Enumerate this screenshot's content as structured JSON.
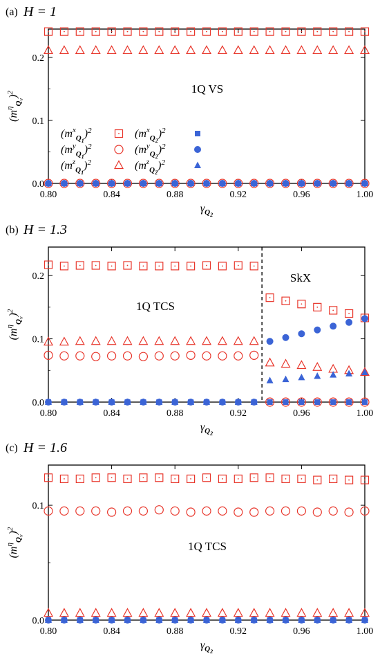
{
  "colors": {
    "red": "#e8362b",
    "blue": "#3b64d6"
  },
  "chart_data": [
    {
      "type": "scatter",
      "panel_label": "(a)",
      "field_label": "H = 1",
      "xlabel": "γQ₂",
      "ylabel": "(mᵑQᵥ)²",
      "xlim": [
        0.8,
        1.0
      ],
      "ylim": [
        0,
        0.245
      ],
      "xticks": [
        "0.80",
        "0.84",
        "0.88",
        "0.92",
        "0.96",
        "1.00"
      ],
      "yticks": [
        "0.0",
        "0.1",
        "0.2"
      ],
      "annotations": [
        "1Q VS"
      ],
      "legend": [
        "(mˣQ₁)²",
        "(mʸQ₁)²",
        "(mᶻQ₁)²",
        "(mˣQ₂)²",
        "(mʸQ₂)²",
        "(mᶻQ₂)²"
      ],
      "x": [
        0.8,
        0.81,
        0.82,
        0.83,
        0.84,
        0.85,
        0.86,
        0.87,
        0.88,
        0.89,
        0.9,
        0.91,
        0.92,
        0.93,
        0.94,
        0.95,
        0.96,
        0.97,
        0.98,
        0.99,
        1.0
      ],
      "series": [
        {
          "name": "(mˣQ₁)²",
          "marker": "square-open",
          "color": "red",
          "values": [
            0.241,
            0.241,
            0.241,
            0.241,
            0.241,
            0.241,
            0.241,
            0.241,
            0.241,
            0.241,
            0.241,
            0.241,
            0.241,
            0.241,
            0.241,
            0.241,
            0.241,
            0.241,
            0.241,
            0.241,
            0.241
          ]
        },
        {
          "name": "(mʸQ₁)²",
          "marker": "circle-open",
          "color": "red",
          "values": [
            0.0,
            0.0,
            0.0,
            0.0,
            0.0,
            0.0,
            0.0,
            0.0,
            0.0,
            0.0,
            0.0,
            0.0,
            0.0,
            0.0,
            0.0,
            0.0,
            0.0,
            0.0,
            0.0,
            0.0,
            0.0
          ]
        },
        {
          "name": "(mᶻQ₁)²",
          "marker": "triangle-open",
          "color": "red",
          "values": [
            0.211,
            0.211,
            0.211,
            0.211,
            0.211,
            0.211,
            0.211,
            0.211,
            0.211,
            0.211,
            0.211,
            0.211,
            0.211,
            0.211,
            0.211,
            0.211,
            0.211,
            0.211,
            0.211,
            0.211,
            0.211
          ]
        },
        {
          "name": "(mˣQ₂)²",
          "marker": "square-filled",
          "color": "blue",
          "values": [
            0.0,
            0.0,
            0.0,
            0.0,
            0.0,
            0.0,
            0.0,
            0.0,
            0.0,
            0.0,
            0.0,
            0.0,
            0.0,
            0.0,
            0.0,
            0.0,
            0.0,
            0.0,
            0.0,
            0.0,
            0.0
          ]
        },
        {
          "name": "(mʸQ₂)²",
          "marker": "circle-filled",
          "color": "blue",
          "values": [
            0.0,
            0.0,
            0.0,
            0.0,
            0.0,
            0.0,
            0.0,
            0.0,
            0.0,
            0.0,
            0.0,
            0.0,
            0.0,
            0.0,
            0.0,
            0.0,
            0.0,
            0.0,
            0.0,
            0.0,
            0.0
          ]
        },
        {
          "name": "(mᶻQ₂)²",
          "marker": "triangle-filled",
          "color": "blue",
          "values": [
            0.0,
            0.0,
            0.0,
            0.0,
            0.0,
            0.0,
            0.0,
            0.0,
            0.0,
            0.0,
            0.0,
            0.0,
            0.0,
            0.0,
            0.0,
            0.0,
            0.0,
            0.0,
            0.0,
            0.0,
            0.0
          ]
        }
      ]
    },
    {
      "type": "scatter",
      "panel_label": "(b)",
      "field_label": "H = 1.3",
      "xlabel": "γQ₂",
      "ylabel": "(mᵑQᵥ)²",
      "xlim": [
        0.8,
        1.0
      ],
      "ylim": [
        0,
        0.245
      ],
      "xticks": [
        "0.80",
        "0.84",
        "0.88",
        "0.92",
        "0.96",
        "1.00"
      ],
      "yticks": [
        "0.0",
        "0.1",
        "0.2"
      ],
      "annotations": [
        "1Q TCS",
        "SkX"
      ],
      "phase_boundary_x": 0.935,
      "x": [
        0.8,
        0.81,
        0.82,
        0.83,
        0.84,
        0.85,
        0.86,
        0.87,
        0.88,
        0.89,
        0.9,
        0.91,
        0.92,
        0.93,
        0.94,
        0.95,
        0.96,
        0.97,
        0.98,
        0.99,
        1.0
      ],
      "series": [
        {
          "name": "(mˣQ₁)²",
          "marker": "square-open",
          "color": "red",
          "values": [
            0.217,
            0.215,
            0.216,
            0.216,
            0.215,
            0.216,
            0.215,
            0.215,
            0.215,
            0.215,
            0.216,
            0.215,
            0.216,
            0.215,
            0.165,
            0.16,
            0.155,
            0.15,
            0.145,
            0.14,
            0.133
          ]
        },
        {
          "name": "(mʸQ₁)²",
          "marker": "circle-open",
          "color": "red",
          "values": [
            0.074,
            0.073,
            0.073,
            0.072,
            0.073,
            0.073,
            0.072,
            0.073,
            0.073,
            0.074,
            0.073,
            0.073,
            0.073,
            0.074,
            0.0,
            0.0,
            0.0,
            0.0,
            0.0,
            0.0,
            0.0
          ]
        },
        {
          "name": "(mᶻQ₁)²",
          "marker": "triangle-open",
          "color": "red",
          "values": [
            0.095,
            0.095,
            0.096,
            0.096,
            0.096,
            0.096,
            0.096,
            0.096,
            0.096,
            0.096,
            0.096,
            0.096,
            0.096,
            0.096,
            0.062,
            0.06,
            0.058,
            0.055,
            0.052,
            0.05,
            0.047
          ]
        },
        {
          "name": "(mˣQ₂)²",
          "marker": "square-filled",
          "color": "blue",
          "values": [
            0.0,
            0.0,
            0.0,
            0.0,
            0.0,
            0.0,
            0.0,
            0.0,
            0.0,
            0.0,
            0.0,
            0.0,
            0.0,
            0.0,
            0.0,
            0.0,
            0.0,
            0.0,
            0.0,
            0.0,
            0.0
          ]
        },
        {
          "name": "(mʸQ₂)²",
          "marker": "circle-filled",
          "color": "blue",
          "values": [
            0.0,
            0.0,
            0.0,
            0.0,
            0.0,
            0.0,
            0.0,
            0.0,
            0.0,
            0.0,
            0.0,
            0.0,
            0.0,
            0.0,
            0.096,
            0.102,
            0.108,
            0.114,
            0.12,
            0.126,
            0.132
          ]
        },
        {
          "name": "(mᶻQ₂)²",
          "marker": "triangle-filled",
          "color": "blue",
          "values": [
            0.0,
            0.0,
            0.0,
            0.0,
            0.0,
            0.0,
            0.0,
            0.0,
            0.0,
            0.0,
            0.0,
            0.0,
            0.0,
            0.0,
            0.034,
            0.036,
            0.039,
            0.041,
            0.043,
            0.045,
            0.047
          ]
        }
      ]
    },
    {
      "type": "scatter",
      "panel_label": "(c)",
      "field_label": "H = 1.6",
      "xlabel": "γQ₂",
      "ylabel": "(mᵑQᵥ)²",
      "xlim": [
        0.8,
        1.0
      ],
      "ylim": [
        0,
        0.135
      ],
      "xticks": [
        "0.80",
        "0.84",
        "0.88",
        "0.92",
        "0.96",
        "1.00"
      ],
      "yticks": [
        "0.0",
        "0.1"
      ],
      "annotations": [
        "1Q TCS"
      ],
      "x": [
        0.8,
        0.81,
        0.82,
        0.83,
        0.84,
        0.85,
        0.86,
        0.87,
        0.88,
        0.89,
        0.9,
        0.91,
        0.92,
        0.93,
        0.94,
        0.95,
        0.96,
        0.97,
        0.98,
        0.99,
        1.0
      ],
      "series": [
        {
          "name": "(mˣQ₁)²",
          "marker": "square-open",
          "color": "red",
          "values": [
            0.124,
            0.123,
            0.123,
            0.124,
            0.124,
            0.123,
            0.124,
            0.124,
            0.123,
            0.123,
            0.124,
            0.123,
            0.123,
            0.124,
            0.124,
            0.123,
            0.123,
            0.122,
            0.123,
            0.122,
            0.122
          ]
        },
        {
          "name": "(mʸQ₁)²",
          "marker": "circle-open",
          "color": "red",
          "values": [
            0.095,
            0.095,
            0.095,
            0.095,
            0.094,
            0.095,
            0.095,
            0.096,
            0.095,
            0.094,
            0.095,
            0.095,
            0.094,
            0.094,
            0.095,
            0.095,
            0.095,
            0.094,
            0.095,
            0.094,
            0.095
          ]
        },
        {
          "name": "(mᶻQ₁)²",
          "marker": "triangle-open",
          "color": "red",
          "values": [
            0.006,
            0.006,
            0.006,
            0.006,
            0.006,
            0.006,
            0.006,
            0.006,
            0.006,
            0.006,
            0.006,
            0.006,
            0.006,
            0.006,
            0.006,
            0.006,
            0.006,
            0.006,
            0.006,
            0.006,
            0.006
          ]
        },
        {
          "name": "(mˣQ₂)²",
          "marker": "square-filled",
          "color": "blue",
          "values": [
            0.0,
            0.0,
            0.0,
            0.0,
            0.0,
            0.0,
            0.0,
            0.0,
            0.0,
            0.0,
            0.0,
            0.0,
            0.0,
            0.0,
            0.0,
            0.0,
            0.0,
            0.0,
            0.0,
            0.0,
            0.0
          ]
        },
        {
          "name": "(mʸQ₂)²",
          "marker": "circle-filled",
          "color": "blue",
          "values": [
            0.0,
            0.0,
            0.0,
            0.0,
            0.0,
            0.0,
            0.0,
            0.0,
            0.0,
            0.0,
            0.0,
            0.0,
            0.0,
            0.0,
            0.0,
            0.0,
            0.0,
            0.0,
            0.0,
            0.0,
            0.0
          ]
        },
        {
          "name": "(mᶻQ₂)²",
          "marker": "triangle-filled",
          "color": "blue",
          "values": [
            0.0,
            0.0,
            0.0,
            0.0,
            0.0,
            0.0,
            0.0,
            0.0,
            0.0,
            0.0,
            0.0,
            0.0,
            0.0,
            0.0,
            0.0,
            0.0,
            0.0,
            0.0,
            0.0,
            0.0,
            0.0
          ]
        }
      ]
    }
  ]
}
